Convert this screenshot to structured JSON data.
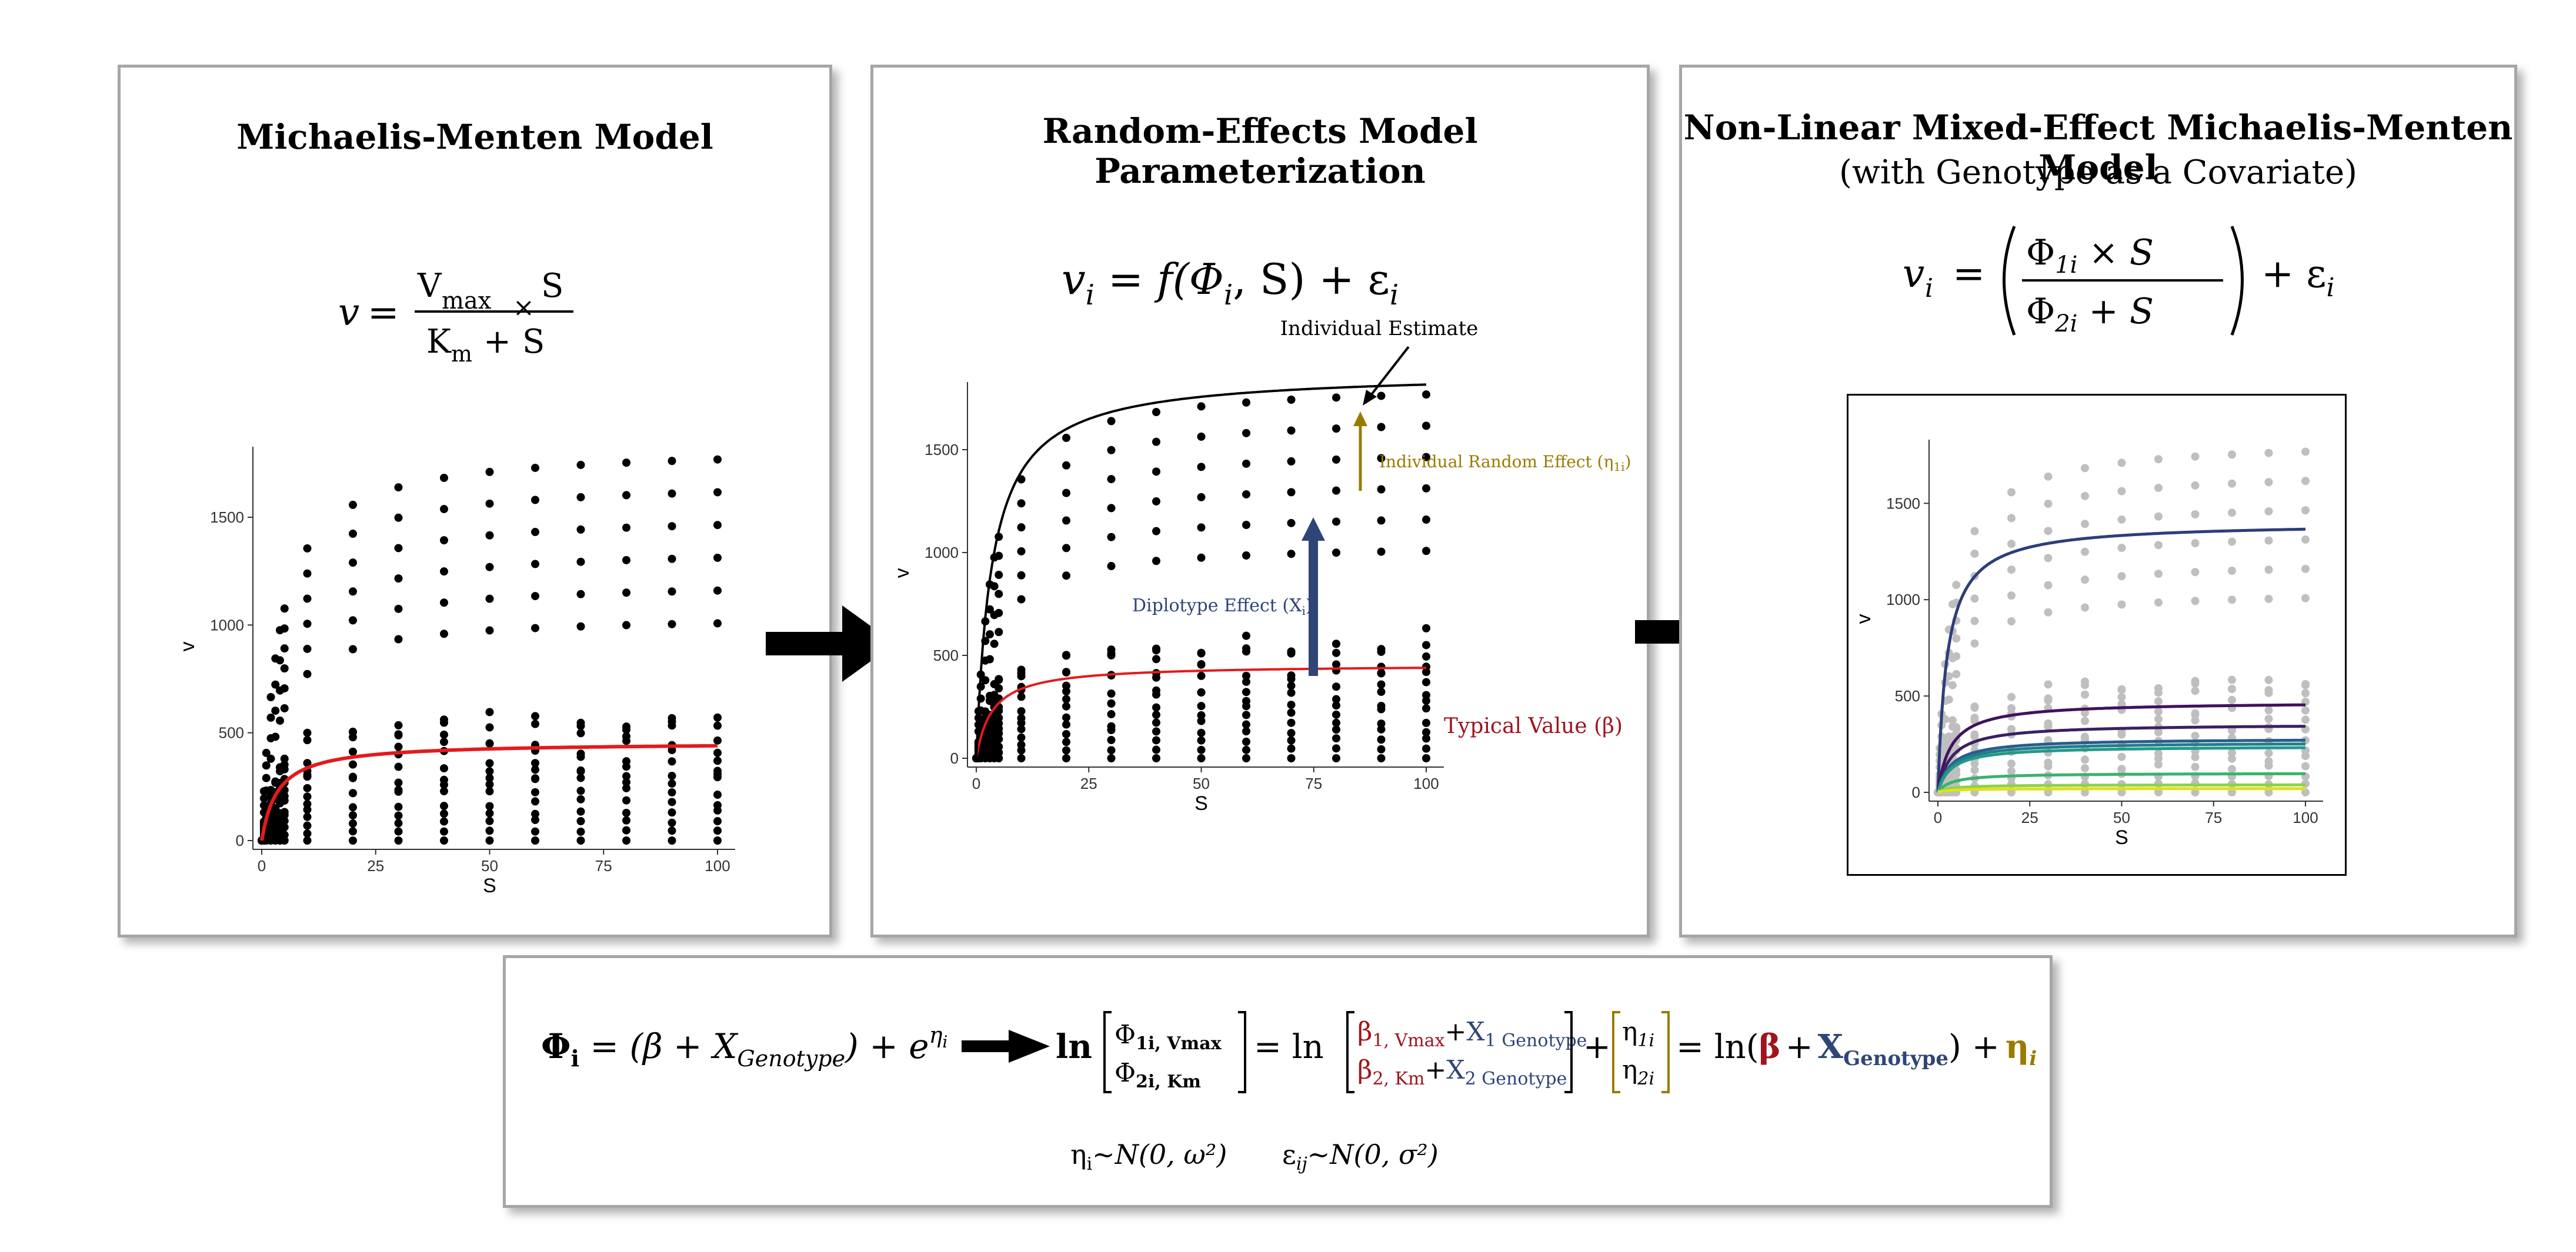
{
  "panel1": {
    "title": "Michaelis-Menten Model",
    "eq": {
      "v": "v",
      "eqsign": "=",
      "vmax": "V",
      "vmax_sub": "max",
      "times": "×",
      "s": "S",
      "km": "K",
      "km_sub": "m",
      "plus": "+",
      "s2": "S"
    }
  },
  "panel2": {
    "title": "Random-Effects Model Parameterization",
    "eq": {
      "v": "v",
      "i1": "i",
      "rhs": " = f(Φ",
      "i2": "i",
      "rhs2": ", S) + ε",
      "i3": "i"
    },
    "ann_individual_estimate": "Individual Estimate",
    "ann_random_effect": "Individual Random Effect (η",
    "ann_random_effect_sub": "1i",
    "ann_random_effect_close": ")",
    "ann_diplotype": "Diplotype Effect (X",
    "ann_diplotype_sub": "i",
    "ann_diplotype_close": ")",
    "ann_typical": "Typical Value (β)"
  },
  "panel3": {
    "title": "Non-Linear Mixed-Effect Michaelis-Menten Model",
    "subtitle": "(with Genotype as a Covariate)",
    "eq": {
      "v": "v",
      "i": "i",
      "eqsign": "=",
      "phi1": "Φ",
      "phi1_sub": "1i",
      "times": " × S",
      "phi2": "Φ",
      "phi2_sub": "2i",
      "plus": " + S",
      "eps": "+ ε",
      "eps_sub": "i"
    }
  },
  "bottom": {
    "phi": "Φ",
    "phi_sub": "i",
    "part1": " = (β + X",
    "genotype_sub": "Genotype",
    "part2": ") + e",
    "eta_sup": "η",
    "eta_sup_sub": "i",
    "ln": "ln",
    "m1_top": "Φ",
    "m1_top_sub": "1i, Vmax",
    "m1_bot": "Φ",
    "m1_bot_sub": "2i, Km",
    "eq_ln": "= ln",
    "b1": "β",
    "b1_sub": "1, Vmax",
    "b2": "β",
    "b2_sub": "2, Km",
    "plus": "+",
    "x1": "X",
    "x1_sub": "1 Genotype",
    "x2": "X",
    "x2_sub": "2 Genotype",
    "eta1": "η",
    "eta1_sub": "1i",
    "eta2": "η",
    "eta2_sub": "2i",
    "final_eq": "= ln(",
    "final_beta": "β",
    "final_x": "X",
    "final_x_sub": "Genotype",
    "final_close": ") +",
    "final_eta": "η",
    "final_eta_sub": "i",
    "dist1": "η",
    "dist1_sub": "i",
    "dist1_rest": "~N(0, ω²)",
    "dist2": "ε",
    "dist2_sub": "ij",
    "dist2_rest": "~N(0, σ²)"
  },
  "colors": {
    "red": "#e41a1c",
    "navy": "#2e4576",
    "gold": "#9a7b00",
    "darkred": "#a0141c",
    "gray": "#bfbfbf"
  },
  "chart_data": [
    {
      "type": "scatter",
      "title": "",
      "xlabel": "S",
      "ylabel": "v",
      "x_ticks": [
        0,
        25,
        50,
        75,
        100
      ],
      "y_ticks": [
        0,
        500,
        1000,
        1500
      ],
      "xlim": [
        0,
        100
      ],
      "ylim": [
        0,
        1800
      ],
      "series": [
        {
          "type": "line",
          "color": "red",
          "vmax": 455,
          "km": 3.5
        }
      ]
    },
    {
      "type": "scatter",
      "title": "",
      "xlabel": "S",
      "ylabel": "v",
      "x_ticks": [
        0,
        25,
        50,
        75,
        100
      ],
      "y_ticks": [
        0,
        500,
        1000,
        1500
      ],
      "xlim": [
        0,
        100
      ],
      "ylim": [
        0,
        1800
      ],
      "series": [
        {
          "type": "line",
          "color": "red",
          "vmax": 455,
          "km": 3.5
        },
        {
          "type": "line",
          "color": "black",
          "vmax": 1880,
          "km": 3.5
        }
      ]
    },
    {
      "type": "scatter",
      "title": "",
      "xlabel": "S",
      "ylabel": "v",
      "x_ticks": [
        0,
        25,
        50,
        75,
        100
      ],
      "y_ticks": [
        0,
        500,
        1000,
        1500
      ],
      "xlim": [
        0,
        100
      ],
      "ylim": [
        0,
        1800
      ],
      "series": [
        {
          "type": "line",
          "color": "#2c3e7b",
          "vmax": 1400,
          "km": 2.5
        },
        {
          "type": "line",
          "color": "#40125e",
          "vmax": 470,
          "km": 3.5
        },
        {
          "type": "line",
          "color": "#3b1f63",
          "vmax": 355,
          "km": 3.5
        },
        {
          "type": "line",
          "color": "#2a5c8a",
          "vmax": 280,
          "km": 3.5
        },
        {
          "type": "line",
          "color": "#1f7f8a",
          "vmax": 260,
          "km": 3.5
        },
        {
          "type": "line",
          "color": "#23998a",
          "vmax": 240,
          "km": 3.5
        },
        {
          "type": "line",
          "color": "#3bb26e",
          "vmax": 100,
          "km": 3.5
        },
        {
          "type": "line",
          "color": "#8fd14b",
          "vmax": 40,
          "km": 3.5
        },
        {
          "type": "line",
          "color": "#dde318",
          "vmax": 20,
          "km": 3.5
        }
      ]
    }
  ]
}
